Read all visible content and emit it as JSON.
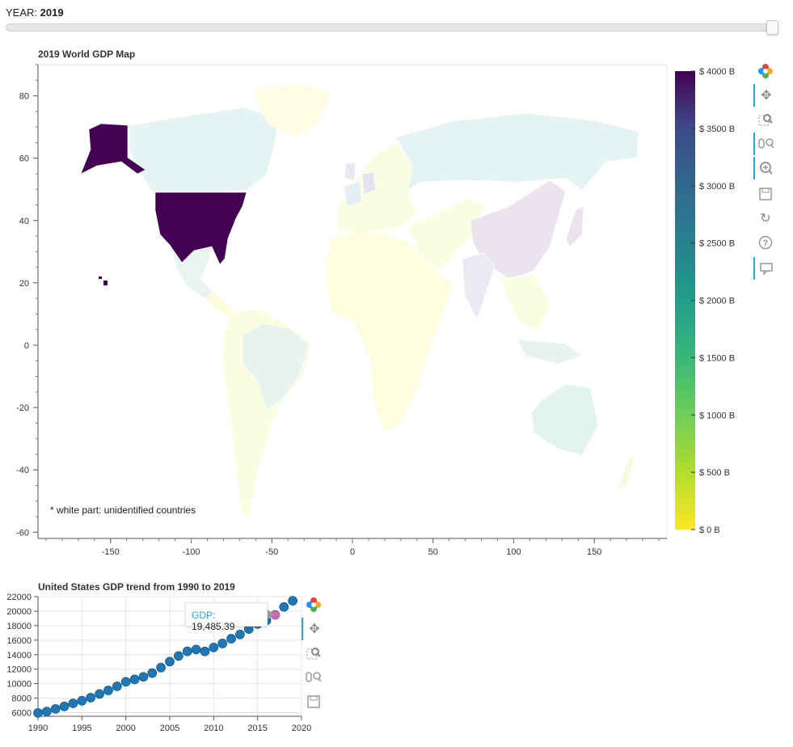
{
  "slider": {
    "label": "YEAR:",
    "value": "2019"
  },
  "map_chart": {
    "title": "2019 World GDP Map",
    "note": "* white part: unidentified countries",
    "colorbar_labels": [
      "$ 4000 B",
      "$ 3500 B",
      "$ 3000 B",
      "$ 2500 B",
      "$ 2000 B",
      "$ 1500 B",
      "$ 1000 B",
      "$ 500 B",
      "$ 0 B"
    ]
  },
  "toolbar_map": [
    "bokeh-logo-icon",
    "pan-icon",
    "box-zoom-icon",
    "wheel-zoom-icon",
    "zoom-in-icon",
    "save-icon",
    "reset-icon",
    "help-icon",
    "hover-icon"
  ],
  "toolbar_trend": [
    "bokeh-logo-icon",
    "pan-icon",
    "box-zoom-icon",
    "wheel-zoom-icon",
    "save-icon"
  ],
  "tooltip": {
    "label": "GDP:",
    "value": "19,485.39"
  },
  "colors": {
    "accent": "#1f77b4",
    "highlight": "#c86bb6",
    "tool_active": "#26aae1"
  },
  "chart_data": [
    {
      "type": "heatmap",
      "title": "2019 World GDP Map",
      "xlim": [
        -195,
        195
      ],
      "ylim": [
        -62,
        90
      ],
      "x_ticks": [
        -150,
        -100,
        -50,
        0,
        50,
        100,
        150
      ],
      "y_ticks": [
        80,
        60,
        40,
        20,
        0,
        -20,
        -40,
        -60
      ],
      "color_range": [
        0,
        4000
      ],
      "colorbar_ticks": [
        4000,
        3500,
        3000,
        2500,
        2000,
        1500,
        1000,
        500,
        0
      ],
      "palette": "viridis-reversed",
      "grid": false
    },
    {
      "type": "scatter",
      "title": "United States GDP trend from 1990 to 2019",
      "xlim": [
        1990,
        2020
      ],
      "ylim": [
        5500,
        22000
      ],
      "x_ticks": [
        1990,
        1995,
        2000,
        2005,
        2010,
        2015,
        2020
      ],
      "y_ticks": [
        6000,
        8000,
        10000,
        12000,
        14000,
        16000,
        18000,
        20000,
        22000
      ],
      "grid": true,
      "x": [
        1990,
        1991,
        1992,
        1993,
        1994,
        1995,
        1996,
        1997,
        1998,
        1999,
        2000,
        2001,
        2002,
        2003,
        2004,
        2005,
        2006,
        2007,
        2008,
        2009,
        2010,
        2011,
        2012,
        2013,
        2014,
        2015,
        2016,
        2017,
        2018,
        2019
      ],
      "values": [
        5963,
        6158,
        6520,
        6859,
        7287,
        7639,
        8073,
        8577,
        9062,
        9631,
        10252,
        10582,
        10936,
        11458,
        12214,
        13037,
        13815,
        14452,
        14713,
        14449,
        14992,
        15543,
        16197,
        16785,
        17527,
        18224,
        18715,
        19485,
        20580,
        21427
      ],
      "highlighted_x": 2017
    }
  ]
}
